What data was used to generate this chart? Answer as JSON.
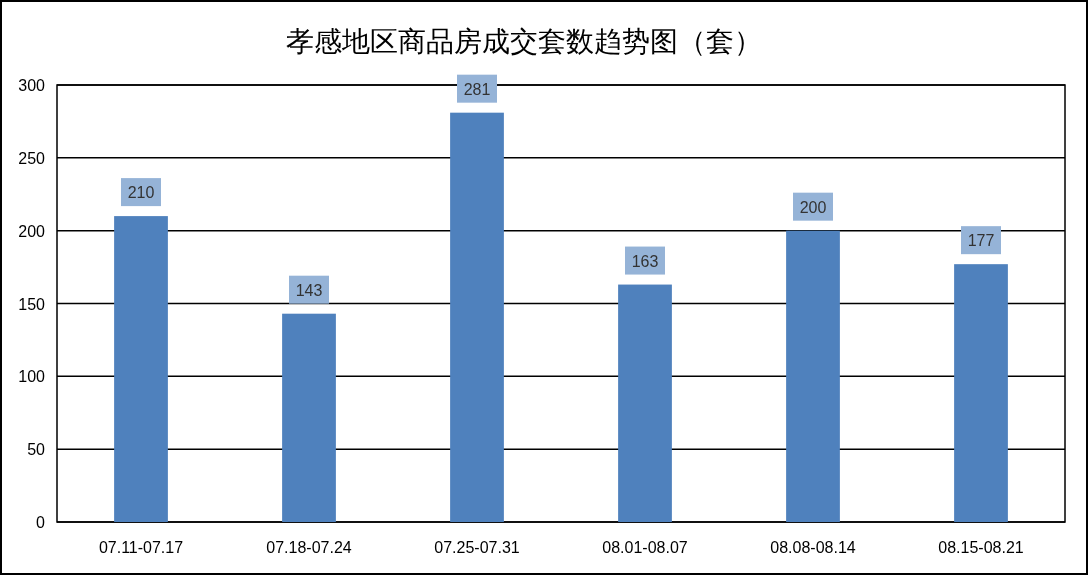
{
  "chart_data": {
    "type": "bar",
    "title": "孝感地区商品房成交套数趋势图（套）",
    "categories": [
      "07.11-07.17",
      "07.18-07.24",
      "07.25-07.31",
      "08.01-08.07",
      "08.08-08.14",
      "08.15-08.21"
    ],
    "values": [
      210,
      143,
      281,
      163,
      200,
      177
    ],
    "color": "#4f81bd",
    "ylim": [
      0,
      300
    ],
    "yticks": [
      0,
      50,
      100,
      150,
      200,
      250,
      300
    ],
    "grid": "y",
    "data_labels": true
  }
}
